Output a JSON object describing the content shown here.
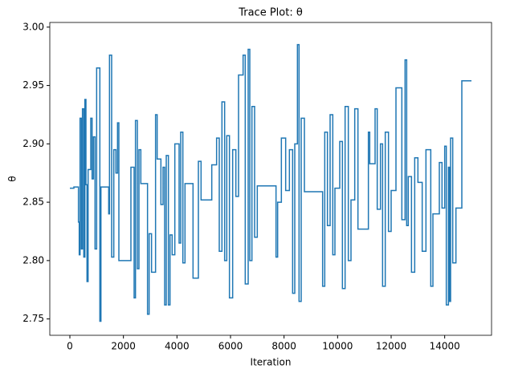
{
  "chart_data": {
    "type": "line",
    "title": "Trace Plot: θ",
    "xlabel": "Iteration",
    "ylabel": "θ",
    "drawstyle": "steps-post",
    "xlim": [
      -750,
      15750
    ],
    "xticks": [
      0,
      2000,
      4000,
      6000,
      8000,
      10000,
      12000,
      14000
    ],
    "ylim": [
      2.736,
      3.004
    ],
    "yticks": [
      {
        "value": 2.75,
        "label": "2.75"
      },
      {
        "value": 2.8,
        "label": "2.80"
      },
      {
        "value": 2.85,
        "label": "2.85"
      },
      {
        "value": 2.9,
        "label": "2.90"
      },
      {
        "value": 2.95,
        "label": "2.95"
      },
      {
        "value": 3.0,
        "label": "3.00"
      }
    ],
    "grid": false,
    "series": [
      {
        "color": "#1f77b4",
        "x": [
          0,
          150,
          320,
          350,
          380,
          430,
          470,
          520,
          560,
          600,
          640,
          680,
          780,
          830,
          880,
          940,
          1000,
          1120,
          1160,
          1450,
          1480,
          1560,
          1640,
          1720,
          1780,
          1830,
          2280,
          2400,
          2450,
          2520,
          2580,
          2650,
          2900,
          2960,
          3050,
          3200,
          3260,
          3400,
          3480,
          3540,
          3600,
          3680,
          3740,
          3820,
          3920,
          4080,
          4140,
          4220,
          4300,
          4600,
          4800,
          4900,
          5300,
          5480,
          5580,
          5680,
          5780,
          5860,
          5960,
          6080,
          6200,
          6300,
          6470,
          6550,
          6660,
          6720,
          6800,
          6900,
          7000,
          7700,
          7760,
          7900,
          8060,
          8200,
          8320,
          8400,
          8500,
          8560,
          8640,
          8760,
          9440,
          9520,
          9620,
          9720,
          9820,
          9900,
          10080,
          10180,
          10280,
          10400,
          10500,
          10640,
          10760,
          11150,
          11200,
          11400,
          11480,
          11600,
          11680,
          11780,
          11900,
          12000,
          12180,
          12400,
          12520,
          12580,
          12640,
          12760,
          12880,
          13000,
          13160,
          13300,
          13480,
          13560,
          13800,
          13900,
          14000,
          14060,
          14140,
          14180,
          14220,
          14300,
          14420,
          14640,
          15000
        ],
        "values": [
          2.862,
          2.863,
          2.833,
          2.805,
          2.922,
          2.81,
          2.93,
          2.803,
          2.938,
          2.865,
          2.782,
          2.878,
          2.922,
          2.87,
          2.906,
          2.81,
          2.965,
          2.748,
          2.863,
          2.84,
          2.976,
          2.803,
          2.895,
          2.875,
          2.918,
          2.8,
          2.88,
          2.768,
          2.92,
          2.793,
          2.895,
          2.866,
          2.754,
          2.823,
          2.79,
          2.925,
          2.887,
          2.848,
          2.88,
          2.762,
          2.89,
          2.762,
          2.822,
          2.805,
          2.9,
          2.815,
          2.91,
          2.798,
          2.866,
          2.785,
          2.885,
          2.852,
          2.882,
          2.905,
          2.808,
          2.936,
          2.8,
          2.907,
          2.768,
          2.895,
          2.855,
          2.959,
          2.976,
          2.78,
          2.981,
          2.8,
          2.932,
          2.82,
          2.864,
          2.803,
          2.85,
          2.905,
          2.86,
          2.895,
          2.772,
          2.9,
          2.985,
          2.765,
          2.922,
          2.859,
          2.778,
          2.91,
          2.83,
          2.925,
          2.805,
          2.862,
          2.902,
          2.776,
          2.932,
          2.8,
          2.852,
          2.93,
          2.827,
          2.91,
          2.883,
          2.93,
          2.844,
          2.9,
          2.778,
          2.91,
          2.825,
          2.86,
          2.948,
          2.835,
          2.972,
          2.83,
          2.872,
          2.79,
          2.888,
          2.867,
          2.808,
          2.895,
          2.778,
          2.84,
          2.884,
          2.845,
          2.898,
          2.762,
          2.88,
          2.765,
          2.905,
          2.798,
          2.845,
          2.954,
          2.954
        ]
      }
    ]
  }
}
